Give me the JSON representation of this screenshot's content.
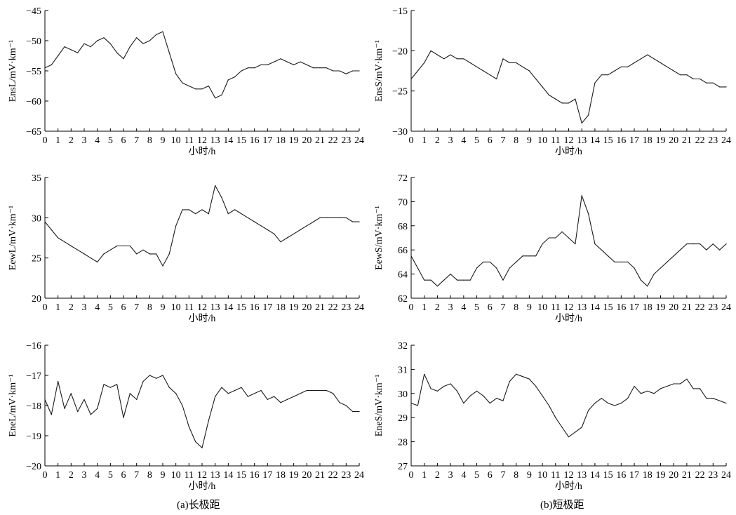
{
  "captions": {
    "left": "(a)长极距",
    "right": "(b)短极距"
  },
  "chart_data": [
    {
      "type": "line",
      "ylabel": "EnsL/mV·km⁻¹",
      "xlabel": "小时/h",
      "xlim": [
        0,
        24
      ],
      "ylim": [
        -65,
        -45
      ],
      "yticks": [
        -45,
        -50,
        -55,
        -60,
        -65
      ],
      "xticks": [
        0,
        1,
        2,
        3,
        4,
        5,
        6,
        7,
        8,
        9,
        10,
        11,
        12,
        13,
        14,
        15,
        16,
        17,
        18,
        19,
        20,
        21,
        22,
        23,
        24
      ],
      "x": [
        0,
        0.5,
        1,
        1.5,
        2,
        2.5,
        3,
        3.5,
        4,
        4.5,
        5,
        5.5,
        6,
        6.5,
        7,
        7.5,
        8,
        8.5,
        9,
        9.5,
        10,
        10.5,
        11,
        11.5,
        12,
        12.5,
        13,
        13.5,
        14,
        14.5,
        15,
        15.5,
        16,
        16.5,
        17,
        17.5,
        18,
        18.5,
        19,
        19.5,
        20,
        20.5,
        21,
        21.5,
        22,
        22.5,
        23,
        23.5,
        24
      ],
      "y": [
        -54.5,
        -54,
        -52.5,
        -51,
        -51.5,
        -52,
        -50.5,
        -51,
        -50,
        -49.5,
        -50.5,
        -52,
        -53,
        -51,
        -49.5,
        -50.5,
        -50,
        -49,
        -48.5,
        -52,
        -55.5,
        -57,
        -57.5,
        -58,
        -58,
        -57.5,
        -59.5,
        -59,
        -56.5,
        -56,
        -55,
        -54.5,
        -54.5,
        -54,
        -54,
        -53.5,
        -53,
        -53.5,
        -54,
        -53.5,
        -54,
        -54.5,
        -54.5,
        -54.5,
        -55,
        -55,
        -55.5,
        -55,
        -55
      ]
    },
    {
      "type": "line",
      "ylabel": "EnsS/mV·km⁻¹",
      "xlabel": "小时/h",
      "xlim": [
        0,
        24
      ],
      "ylim": [
        -30,
        -15
      ],
      "yticks": [
        -15,
        -20,
        -25,
        -30
      ],
      "xticks": [
        0,
        1,
        2,
        3,
        4,
        5,
        6,
        7,
        8,
        9,
        10,
        11,
        12,
        13,
        14,
        15,
        16,
        17,
        18,
        19,
        20,
        21,
        22,
        23,
        24
      ],
      "x": [
        0,
        0.5,
        1,
        1.5,
        2,
        2.5,
        3,
        3.5,
        4,
        4.5,
        5,
        5.5,
        6,
        6.5,
        7,
        7.5,
        8,
        8.5,
        9,
        9.5,
        10,
        10.5,
        11,
        11.5,
        12,
        12.5,
        13,
        13.5,
        14,
        14.5,
        15,
        15.5,
        16,
        16.5,
        17,
        17.5,
        18,
        18.5,
        19,
        19.5,
        20,
        20.5,
        21,
        21.5,
        22,
        22.5,
        23,
        23.5,
        24
      ],
      "y": [
        -23.5,
        -22.5,
        -21.5,
        -20,
        -20.5,
        -21,
        -20.5,
        -21,
        -21,
        -21.5,
        -22,
        -22.5,
        -23,
        -23.5,
        -21,
        -21.5,
        -21.5,
        -22,
        -22.5,
        -23.5,
        -24.5,
        -25.5,
        -26,
        -26.5,
        -26.5,
        -26,
        -29,
        -28,
        -24,
        -23,
        -23,
        -22.5,
        -22,
        -22,
        -21.5,
        -21,
        -20.5,
        -21,
        -21.5,
        -22,
        -22.5,
        -23,
        -23,
        -23.5,
        -23.5,
        -24,
        -24,
        -24.5,
        -24.5
      ]
    },
    {
      "type": "line",
      "ylabel": "EewL/mV·km⁻¹",
      "xlabel": "小时/h",
      "xlim": [
        0,
        24
      ],
      "ylim": [
        20,
        35
      ],
      "yticks": [
        35,
        30,
        25,
        20
      ],
      "xticks": [
        0,
        1,
        2,
        3,
        4,
        5,
        6,
        7,
        8,
        9,
        10,
        11,
        12,
        13,
        14,
        15,
        16,
        17,
        18,
        19,
        20,
        21,
        22,
        23,
        24
      ],
      "x": [
        0,
        0.5,
        1,
        1.5,
        2,
        2.5,
        3,
        3.5,
        4,
        4.5,
        5,
        5.5,
        6,
        6.5,
        7,
        7.5,
        8,
        8.5,
        9,
        9.5,
        10,
        10.5,
        11,
        11.5,
        12,
        12.5,
        13,
        13.5,
        14,
        14.5,
        15,
        15.5,
        16,
        16.5,
        17,
        17.5,
        18,
        18.5,
        19,
        19.5,
        20,
        20.5,
        21,
        21.5,
        22,
        22.5,
        23,
        23.5,
        24
      ],
      "y": [
        29.5,
        28.5,
        27.5,
        27,
        26.5,
        26,
        25.5,
        25,
        24.5,
        25.5,
        26,
        26.5,
        26.5,
        26.5,
        25.5,
        26,
        25.5,
        25.5,
        24,
        25.5,
        29,
        31,
        31,
        30.5,
        31,
        30.5,
        34,
        32.5,
        30.5,
        31,
        30.5,
        30,
        29.5,
        29,
        28.5,
        28,
        27,
        27.5,
        28,
        28.5,
        29,
        29.5,
        30,
        30,
        30,
        30,
        30,
        29.5,
        29.5
      ]
    },
    {
      "type": "line",
      "ylabel": "EewS/mV·km⁻¹",
      "xlabel": "小时/h",
      "xlim": [
        0,
        24
      ],
      "ylim": [
        62,
        72
      ],
      "yticks": [
        72,
        70,
        68,
        66,
        64,
        62
      ],
      "xticks": [
        0,
        1,
        2,
        3,
        4,
        5,
        6,
        7,
        8,
        9,
        10,
        11,
        12,
        13,
        14,
        15,
        16,
        17,
        18,
        19,
        20,
        21,
        22,
        23,
        24
      ],
      "x": [
        0,
        0.5,
        1,
        1.5,
        2,
        2.5,
        3,
        3.5,
        4,
        4.5,
        5,
        5.5,
        6,
        6.5,
        7,
        7.5,
        8,
        8.5,
        9,
        9.5,
        10,
        10.5,
        11,
        11.5,
        12,
        12.5,
        13,
        13.5,
        14,
        14.5,
        15,
        15.5,
        16,
        16.5,
        17,
        17.5,
        18,
        18.5,
        19,
        19.5,
        20,
        20.5,
        21,
        21.5,
        22,
        22.5,
        23,
        23.5,
        24
      ],
      "y": [
        65.5,
        64.5,
        63.5,
        63.5,
        63,
        63.5,
        64,
        63.5,
        63.5,
        63.5,
        64.5,
        65,
        65,
        64.5,
        63.5,
        64.5,
        65,
        65.5,
        65.5,
        65.5,
        66.5,
        67,
        67,
        67.5,
        67,
        66.5,
        70.5,
        69,
        66.5,
        66,
        65.5,
        65,
        65,
        65,
        64.5,
        63.5,
        63,
        64,
        64.5,
        65,
        65.5,
        66,
        66.5,
        66.5,
        66.5,
        66,
        66.5,
        66,
        66.5
      ]
    },
    {
      "type": "line",
      "ylabel": "EneL/mV·km⁻¹",
      "xlabel": "小时/h",
      "xlim": [
        0,
        24
      ],
      "ylim": [
        -20,
        -16
      ],
      "yticks": [
        -16,
        -17,
        -18,
        -19,
        -20
      ],
      "xticks": [
        0,
        1,
        2,
        3,
        4,
        5,
        6,
        7,
        8,
        9,
        10,
        11,
        12,
        13,
        14,
        15,
        16,
        17,
        18,
        19,
        20,
        21,
        22,
        23,
        24
      ],
      "x": [
        0,
        0.5,
        1,
        1.5,
        2,
        2.5,
        3,
        3.5,
        4,
        4.5,
        5,
        5.5,
        6,
        6.5,
        7,
        7.5,
        8,
        8.5,
        9,
        9.5,
        10,
        10.5,
        11,
        11.5,
        12,
        12.5,
        13,
        13.5,
        14,
        14.5,
        15,
        15.5,
        16,
        16.5,
        17,
        17.5,
        18,
        18.5,
        19,
        19.5,
        20,
        20.5,
        21,
        21.5,
        22,
        22.5,
        23,
        23.5,
        24
      ],
      "y": [
        -17.8,
        -18.3,
        -17.2,
        -18.1,
        -17.6,
        -18.2,
        -17.8,
        -18.3,
        -18.1,
        -17.3,
        -17.4,
        -17.3,
        -18.4,
        -17.6,
        -17.8,
        -17.2,
        -17,
        -17.1,
        -17,
        -17.4,
        -17.6,
        -18,
        -18.7,
        -19.2,
        -19.4,
        -18.5,
        -17.7,
        -17.4,
        -17.6,
        -17.5,
        -17.4,
        -17.7,
        -17.6,
        -17.5,
        -17.8,
        -17.7,
        -17.9,
        -17.8,
        -17.7,
        -17.6,
        -17.5,
        -17.5,
        -17.5,
        -17.5,
        -17.6,
        -17.9,
        -18,
        -18.2,
        -18.2
      ]
    },
    {
      "type": "line",
      "ylabel": "EneS/mV·km⁻¹",
      "xlabel": "小时/h",
      "xlim": [
        0,
        24
      ],
      "ylim": [
        27,
        32
      ],
      "yticks": [
        32,
        31,
        30,
        29,
        28,
        27
      ],
      "xticks": [
        0,
        1,
        2,
        3,
        4,
        5,
        6,
        7,
        8,
        9,
        10,
        11,
        12,
        13,
        14,
        15,
        16,
        17,
        18,
        19,
        20,
        21,
        22,
        23,
        24
      ],
      "x": [
        0,
        0.5,
        1,
        1.5,
        2,
        2.5,
        3,
        3.5,
        4,
        4.5,
        5,
        5.5,
        6,
        6.5,
        7,
        7.5,
        8,
        8.5,
        9,
        9.5,
        10,
        10.5,
        11,
        11.5,
        12,
        12.5,
        13,
        13.5,
        14,
        14.5,
        15,
        15.5,
        16,
        16.5,
        17,
        17.5,
        18,
        18.5,
        19,
        19.5,
        20,
        20.5,
        21,
        21.5,
        22,
        22.5,
        23,
        23.5,
        24
      ],
      "y": [
        29.6,
        29.5,
        30.8,
        30.2,
        30.1,
        30.3,
        30.4,
        30.1,
        29.6,
        29.9,
        30.1,
        29.9,
        29.6,
        29.8,
        29.7,
        30.5,
        30.8,
        30.7,
        30.6,
        30.3,
        29.9,
        29.5,
        29,
        28.6,
        28.2,
        28.4,
        28.6,
        29.3,
        29.6,
        29.8,
        29.6,
        29.5,
        29.6,
        29.8,
        30.3,
        30,
        30.1,
        30,
        30.2,
        30.3,
        30.4,
        30.4,
        30.6,
        30.2,
        30.2,
        29.8,
        29.8,
        29.7,
        29.6
      ]
    }
  ]
}
